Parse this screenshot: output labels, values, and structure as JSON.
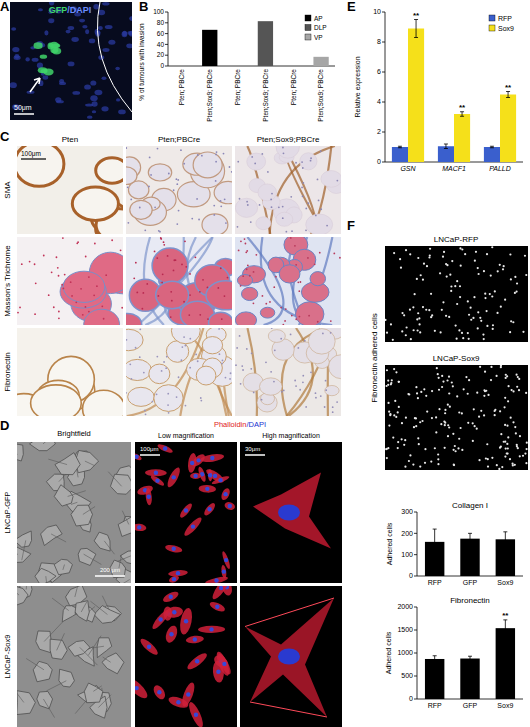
{
  "figure": {
    "A": {
      "letter": "A",
      "stain": "GFP",
      "stain_2": "/DAPI",
      "scale": "50μm"
    },
    "B": {
      "letter": "B"
    },
    "C": {
      "letter": "C",
      "columns": [
        "Pten",
        "Pten;PBCre",
        "Pten;Sox9;PBCre"
      ],
      "rows": [
        "SMA",
        "Masson's Trichrome",
        "Fibronectin"
      ],
      "scale": "100μm"
    },
    "D": {
      "letter": "D",
      "header": "Brightfield",
      "stain": "Phalloidin",
      "stain_2": "/DAPI",
      "columns": [
        "Low magnification",
        "High magnification"
      ],
      "rows": [
        "LNCaP-GFP",
        "LNCaP-Sox9"
      ],
      "scales": [
        "200 μm",
        "100μm",
        "30μm"
      ]
    },
    "E": {
      "letter": "E"
    },
    "F": {
      "letter": "F",
      "images": [
        "LNCaP-RFP",
        "LNCaP-Sox9"
      ],
      "side_label": "Fibronectin adhered cells"
    }
  },
  "chart_data": [
    {
      "type": "bar",
      "y_label": "% of tumours with invasion",
      "categories": [
        "Pten; PBCre",
        "Pten;Sox9; PBCre",
        "Pten; PBCre",
        "Pten;Sox9; PBCre",
        "Pten; PBCre",
        "Pten;Sox9; PBCre"
      ],
      "series": [
        {
          "name": "AP",
          "color": "#000000",
          "values": [
            0,
            67,
            null,
            null,
            null,
            null
          ]
        },
        {
          "name": "DLP",
          "color": "#555555",
          "values": [
            null,
            null,
            0,
            83,
            null,
            null
          ]
        },
        {
          "name": "VP",
          "color": "#a6a6a6",
          "values": [
            null,
            null,
            null,
            null,
            0,
            17
          ]
        }
      ],
      "ylim": [
        0,
        100
      ],
      "yticks": [
        0,
        20,
        40,
        60,
        80,
        100
      ],
      "legend": "upper right"
    },
    {
      "type": "bar",
      "y_label": "Relative expression",
      "categories": [
        "GSN",
        "MACF1",
        "PALLD"
      ],
      "series": [
        {
          "name": "RFP",
          "color": "#3a5fcd",
          "values": [
            1,
            1.05,
            1
          ],
          "errors": [
            0.05,
            0.15,
            0.05
          ]
        },
        {
          "name": "Sox9",
          "color": "#f5e01a",
          "values": [
            8.9,
            3.2,
            4.5
          ],
          "errors": [
            0.6,
            0.15,
            0.2
          ],
          "significance": [
            "**",
            "**",
            "**"
          ]
        }
      ],
      "ylim": [
        0,
        10
      ],
      "yticks": [
        0,
        2,
        4,
        6,
        8,
        10
      ],
      "legend": "upper right"
    },
    {
      "type": "bar",
      "title": "Collagen I",
      "y_label": "Adhered cells",
      "categories": [
        "RFP",
        "GFP",
        "Sox9"
      ],
      "values": [
        160,
        175,
        172
      ],
      "errors": [
        60,
        25,
        35
      ],
      "color": "#000000",
      "ylim": [
        0,
        300
      ],
      "yticks": [
        0,
        100,
        200,
        300
      ]
    },
    {
      "type": "bar",
      "title": "Fibronectin",
      "y_label": "Adhered cells",
      "categories": [
        "RFP",
        "GFP",
        "Sox9"
      ],
      "values": [
        870,
        880,
        1540
      ],
      "errors": [
        70,
        50,
        180
      ],
      "significance": [
        null,
        null,
        "**"
      ],
      "color": "#000000",
      "ylim": [
        0,
        2000
      ],
      "yticks": [
        0,
        500,
        1000,
        1500,
        2000
      ]
    }
  ]
}
